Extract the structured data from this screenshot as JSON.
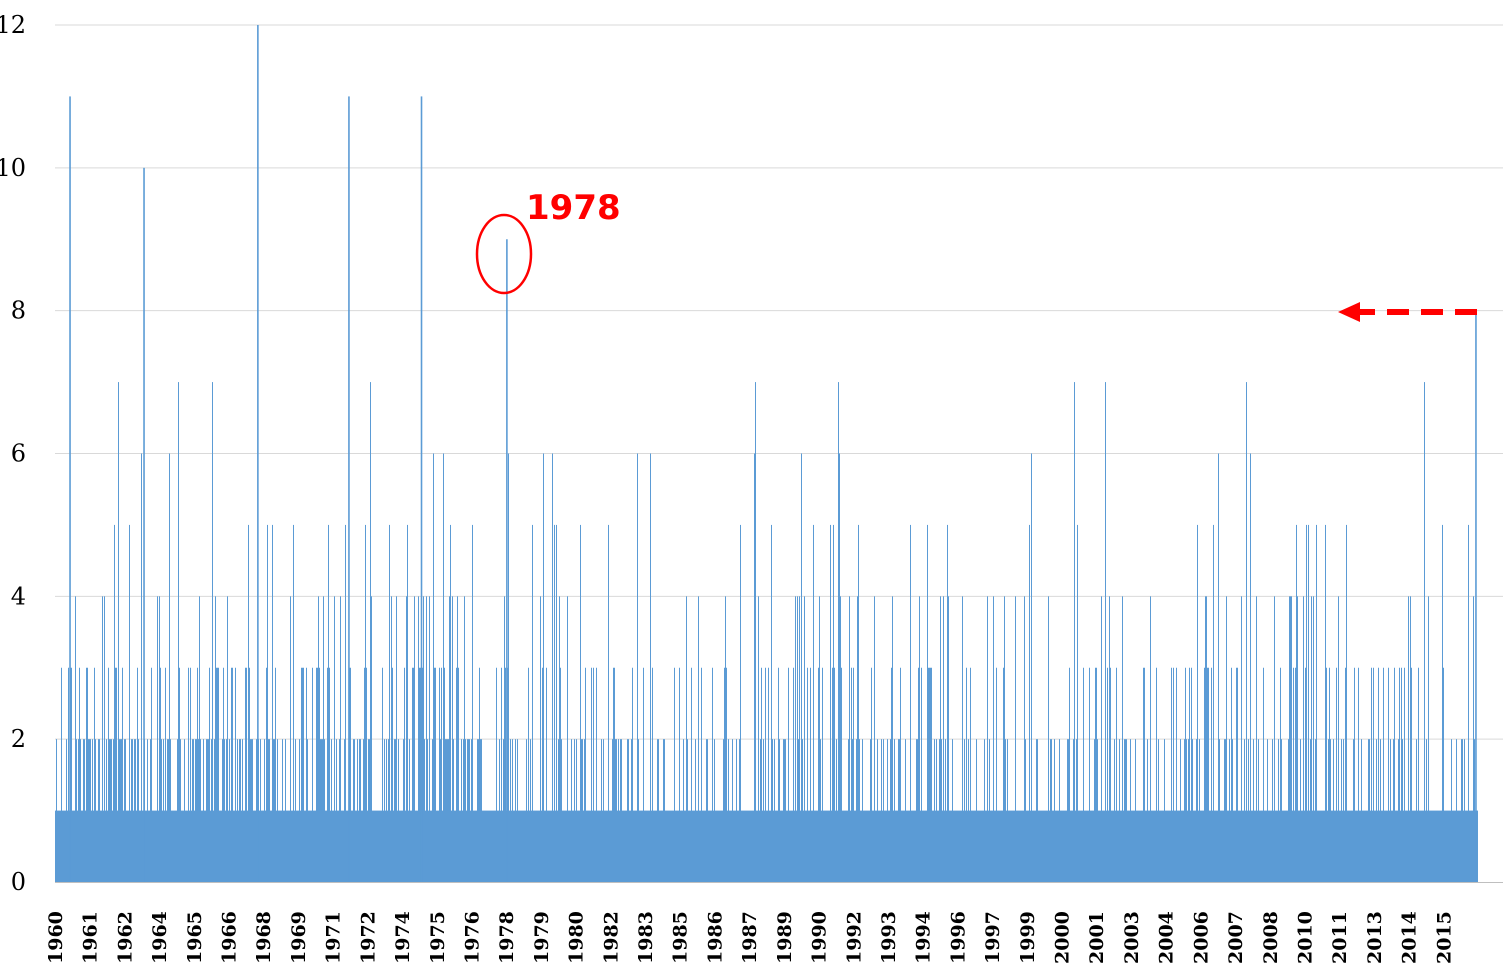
{
  "chart_data": {
    "type": "bar",
    "title": "",
    "xlabel": "",
    "ylabel": "",
    "ylim": [
      0,
      12
    ],
    "yticks": [
      "0",
      "2",
      "4",
      "6",
      "8",
      "10",
      "12"
    ],
    "grid": "horizontal",
    "x_tick_labels": [
      "1960",
      "1961",
      "1962",
      "1964",
      "1965",
      "1966",
      "1968",
      "1969",
      "1971",
      "1972",
      "1974",
      "1975",
      "1976",
      "1978",
      "1979",
      "1980",
      "1982",
      "1983",
      "1985",
      "1986",
      "1987",
      "1989",
      "1990",
      "1992",
      "1993",
      "1994",
      "1996",
      "1997",
      "1999",
      "2000",
      "2001",
      "2003",
      "2004",
      "2006",
      "2007",
      "2008",
      "2010",
      "2011",
      "2013",
      "2014",
      "2015"
    ],
    "bar_color": "#5b9bd5",
    "notable_values": [
      {
        "label": "1978 spike",
        "value": 9
      },
      {
        "label": "1968 spike",
        "value": 12
      },
      {
        "label": "1960 spike",
        "value": 11
      },
      {
        "label": "1971 spike",
        "value": 11
      },
      {
        "label": "1974 spike",
        "value": 11
      },
      {
        "label": "1963 spike",
        "value": 10
      },
      {
        "label": "final value",
        "value": 8
      }
    ],
    "baseline_value": 1,
    "annotations": [
      {
        "type": "circle",
        "label": "1978",
        "color": "#ff0000"
      },
      {
        "type": "dashed-arrow",
        "color": "#ff0000",
        "value": 8
      }
    ]
  }
}
